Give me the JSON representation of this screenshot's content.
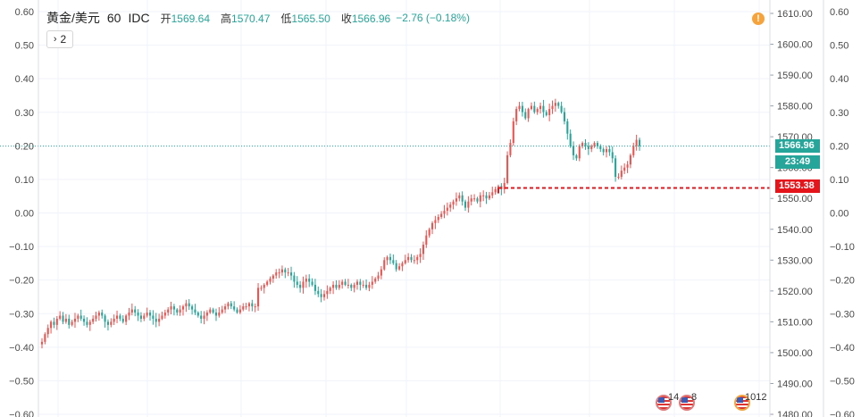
{
  "legend": {
    "symbol": "黄金/美元",
    "interval": "60",
    "source": "IDC",
    "open_label": "开",
    "open_value": "1569.64",
    "high_label": "高",
    "high_value": "1570.47",
    "low_label": "低",
    "low_value": "1565.50",
    "close_label": "收",
    "close_value": "1566.96",
    "change": "−2.76 (−0.18%)"
  },
  "indicators_button": {
    "chevron": "›",
    "count": "2"
  },
  "alert_icon": {
    "icon": "alert-exclamation-icon",
    "glyph": "!"
  },
  "price_tags": {
    "last_price": "1566.96",
    "countdown": "23:49",
    "horizontal_line": "1553.38"
  },
  "events": [
    {
      "icon": "us-flag-icon",
      "count": "14"
    },
    {
      "icon": "us-flag-icon",
      "count": "8"
    },
    {
      "icon": "us-flag-icon",
      "count": "1012"
    }
  ],
  "colors": {
    "up": "#ef5350",
    "down": "#26a69a",
    "last_line": "#26a69a",
    "alert_line": "#e4161c",
    "grid": "#f0f3fa"
  },
  "chart_data": {
    "type": "candlestick",
    "title": "黄金/美元 · 60 · IDC",
    "right_axis": {
      "ticks": [
        "1610.00",
        "1600.00",
        "1590.00",
        "1580.00",
        "1570.00",
        "1560.00",
        "1550.00",
        "1540.00",
        "1530.00",
        "1520.00",
        "1510.00",
        "1500.00",
        "1490.00",
        "1480.00"
      ],
      "range": [
        1480,
        1610
      ]
    },
    "left_axis": {
      "ticks": [
        "0.60",
        "0.50",
        "0.40",
        "0.30",
        "0.20",
        "0.10",
        "0.00",
        "−0.10",
        "−0.20",
        "−0.30",
        "−0.40",
        "−0.50",
        "−0.60"
      ],
      "range": [
        -0.6,
        0.6
      ]
    },
    "far_right_axis": {
      "ticks": [
        "0.60",
        "0.50",
        "0.40",
        "0.30",
        "0.20",
        "0.10",
        "0.00",
        "−0.10",
        "−0.20",
        "−0.30",
        "−0.40",
        "−0.50",
        "−0.60"
      ],
      "range": [
        -0.6,
        0.6
      ]
    },
    "last_price": 1566.96,
    "horizontal_line": 1553.38,
    "close_path": [
      1503.5,
      1506,
      1508,
      1510,
      1509,
      1511,
      1512,
      1510,
      1511,
      1509,
      1510,
      1511,
      1512,
      1511,
      1510,
      1509,
      1510,
      1511,
      1512,
      1513,
      1512,
      1510,
      1509,
      1510,
      1511,
      1512,
      1511,
      1510,
      1512,
      1513,
      1514,
      1513,
      1512,
      1511,
      1512,
      1513,
      1512,
      1511,
      1510,
      1511,
      1512,
      1513,
      1514,
      1515,
      1514,
      1513,
      1514,
      1515,
      1516,
      1515,
      1514,
      1513,
      1512,
      1511,
      1512,
      1513,
      1514,
      1513,
      1512,
      1513,
      1514,
      1515,
      1516,
      1515,
      1514,
      1513,
      1514,
      1515,
      1515,
      1516,
      1515,
      1515,
      1521,
      1521,
      1522,
      1523,
      1524,
      1525,
      1526,
      1526,
      1527,
      1526,
      1526,
      1525,
      1523,
      1522,
      1521,
      1523,
      1524,
      1523,
      1522,
      1520,
      1519,
      1518,
      1519,
      1520,
      1521,
      1522,
      1521,
      1522,
      1523,
      1522,
      1522,
      1521,
      1522,
      1523,
      1522,
      1522,
      1521,
      1522,
      1523,
      1524,
      1525,
      1527,
      1530,
      1531,
      1530,
      1529,
      1527,
      1528,
      1529,
      1530,
      1531,
      1530,
      1530,
      1531,
      1532,
      1535,
      1538,
      1540,
      1542,
      1543,
      1544,
      1545,
      1546,
      1547,
      1548,
      1549,
      1550,
      1551,
      1549,
      1547,
      1549,
      1550,
      1550,
      1549,
      1551,
      1551,
      1550,
      1551,
      1552,
      1553,
      1554,
      1553,
      1555,
      1564,
      1568,
      1575,
      1579,
      1580,
      1578,
      1576,
      1579,
      1580,
      1578,
      1579,
      1580,
      1578,
      1577,
      1579,
      1580,
      1581,
      1580,
      1578,
      1575,
      1571,
      1567,
      1564,
      1563,
      1567,
      1568,
      1567,
      1566,
      1567,
      1568,
      1567,
      1566,
      1565,
      1566,
      1565,
      1563,
      1557,
      1557,
      1559,
      1560,
      1561,
      1564,
      1567,
      1569,
      1567
    ]
  }
}
